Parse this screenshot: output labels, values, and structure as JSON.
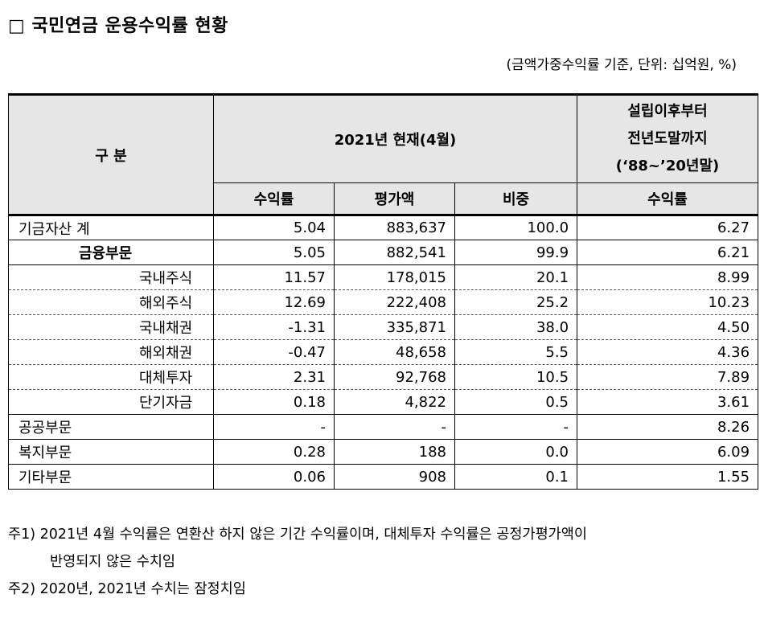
{
  "title": "□ 국민연금 운용수익률 현황",
  "unit_note": "(금액가중수익률 기준, 단위: 십억원, %)",
  "header": {
    "category": "구   분",
    "current_period": "2021년 현재(4월)",
    "since_inception_line1": "설립이후부터",
    "since_inception_line2": "전년도말까지",
    "since_inception_line3": "(‘88~’20년말)",
    "col_return": "수익률",
    "col_value": "평가액",
    "col_weight": "비중",
    "col_return_hist": "수익률"
  },
  "rows": [
    {
      "label": "기금자산 계",
      "return": "5.04",
      "value": "883,637",
      "weight": "100.0",
      "hist": "6.27"
    },
    {
      "label": "금융부문",
      "return": "5.05",
      "value": "882,541",
      "weight": "99.9",
      "hist": "6.21"
    },
    {
      "label": "국내주식",
      "return": "11.57",
      "value": "178,015",
      "weight": "20.1",
      "hist": "8.99"
    },
    {
      "label": "해외주식",
      "return": "12.69",
      "value": "222,408",
      "weight": "25.2",
      "hist": "10.23"
    },
    {
      "label": "국내채권",
      "return": "-1.31",
      "value": "335,871",
      "weight": "38.0",
      "hist": "4.50"
    },
    {
      "label": "해외채권",
      "return": "-0.47",
      "value": "48,658",
      "weight": "5.5",
      "hist": "4.36"
    },
    {
      "label": "대체투자",
      "return": "2.31",
      "value": "92,768",
      "weight": "10.5",
      "hist": "7.89"
    },
    {
      "label": "단기자금",
      "return": "0.18",
      "value": "4,822",
      "weight": "0.5",
      "hist": "3.61"
    },
    {
      "label": "공공부문",
      "return": "-",
      "value": "-",
      "weight": "-",
      "hist": "8.26"
    },
    {
      "label": "복지부문",
      "return": "0.28",
      "value": "188",
      "weight": "0.0",
      "hist": "6.09"
    },
    {
      "label": "기타부문",
      "return": "0.06",
      "value": "908",
      "weight": "0.1",
      "hist": "1.55"
    }
  ],
  "notes": {
    "note1_line1": "주1) 2021년 4월 수익률은 연환산 하지 않은 기간 수익률이며, 대체투자 수익률은 공정가평가액이",
    "note1_line2": "반영되지 않은 수치임",
    "note2": "주2) 2020년, 2021년 수치는 잠정치임"
  }
}
